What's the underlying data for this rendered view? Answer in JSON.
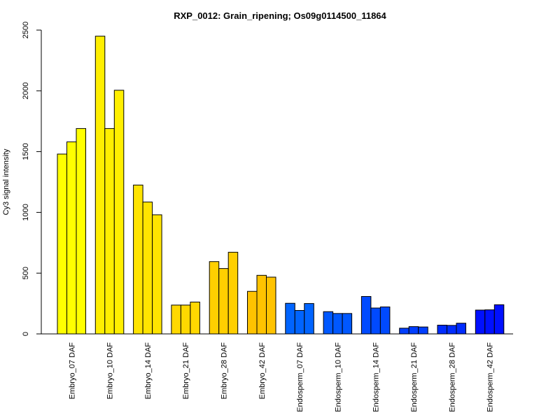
{
  "chart_data": {
    "type": "bar",
    "title": "RXP_0012: Grain_ripening; Os09g0114500_11864",
    "xlabel": "",
    "ylabel": "Cy3 signal intensity",
    "ylim": [
      0,
      2500
    ],
    "yticks": [
      0,
      500,
      1000,
      1500,
      2000,
      2500
    ],
    "grid": false,
    "legend": "none",
    "categories": [
      "Embryo_07 DAF",
      "Embryo_10 DAF",
      "Embryo_14 DAF",
      "Embryo_21 DAF",
      "Embryo_28 DAF",
      "Embryo_42 DAF",
      "Endosperm_07 DAF",
      "Endosperm_10 DAF",
      "Endosperm_14 DAF",
      "Endosperm_21 DAF",
      "Endosperm_28 DAF",
      "Endosperm_42 DAF"
    ],
    "replicates": [
      [
        1480,
        1580,
        1690
      ],
      [
        2450,
        1690,
        2005
      ],
      [
        1225,
        1085,
        980
      ],
      [
        237,
        237,
        262
      ],
      [
        595,
        538,
        672
      ],
      [
        350,
        482,
        467
      ],
      [
        252,
        193,
        250
      ],
      [
        183,
        168,
        168
      ],
      [
        308,
        213,
        222
      ],
      [
        47,
        60,
        57
      ],
      [
        72,
        70,
        88
      ],
      [
        196,
        198,
        240
      ]
    ],
    "colors": [
      "#ffff00",
      "#ffef00",
      "#ffe400",
      "#ffd800",
      "#ffcf00",
      "#ffc300",
      "#0064ff",
      "#0058ff",
      "#004aff",
      "#003eff",
      "#002cff",
      "#0010ff"
    ],
    "bar_outline_color": "#000000"
  }
}
